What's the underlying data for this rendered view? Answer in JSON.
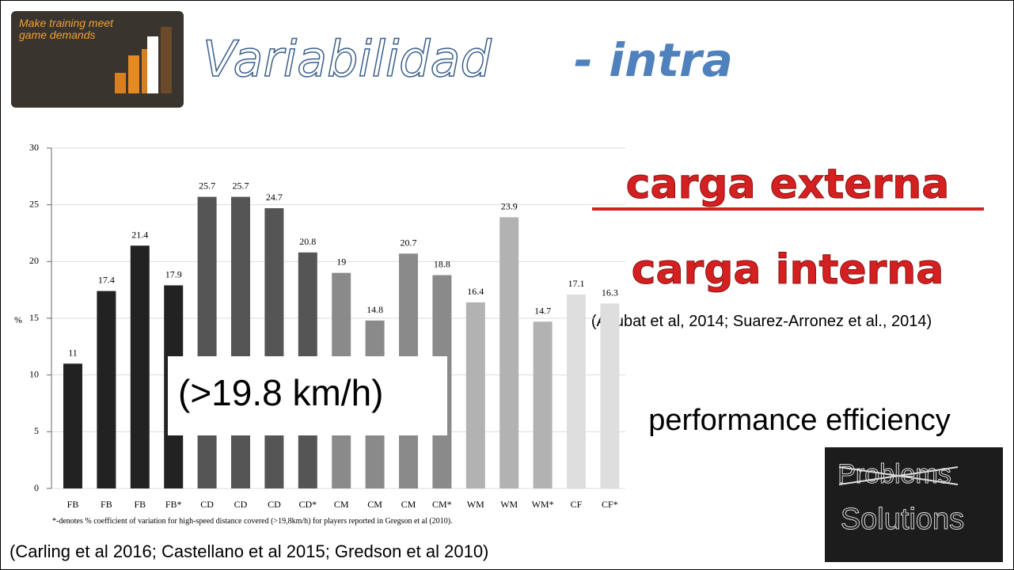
{
  "slide": {
    "logo_text": "Make training meet game demands",
    "title_main": "Variabilidad",
    "title_suffix": "- intra",
    "external_load": "carga externa",
    "internal_load": "carga interna",
    "load_refs": "(Akubat et al, 2014; Suarez-Arronez et al., 2014)",
    "performance": "performance efficiency",
    "chart_refs": "(Carling et al 2016; Castellano et al 2015; Gredson et al 2010)",
    "image_crossed": "Problems",
    "image_word": "Solutions",
    "speed_box": "(>19.8 km/h)"
  },
  "chart_data": {
    "type": "bar",
    "y_label": "%",
    "footnote": "*-denotes % coefficient of variation for high-speed distance covered (>19,8km/h) for players reported in Gregson et al (2010).",
    "categories": [
      "FB",
      "FB",
      "FB",
      "FB*",
      "CD",
      "CD",
      "CD",
      "CD*",
      "CM",
      "CM",
      "CM",
      "CM*",
      "WM",
      "WM",
      "WM*",
      "CF",
      "CF*"
    ],
    "values": [
      11,
      17.4,
      21.4,
      17.9,
      25.7,
      25.7,
      24.7,
      20.8,
      19,
      14.8,
      20.7,
      18.8,
      16.4,
      23.9,
      14.7,
      17.1,
      16.3
    ],
    "colors": [
      "#222222",
      "#222222",
      "#222222",
      "#222222",
      "#555555",
      "#555555",
      "#555555",
      "#555555",
      "#8a8a8a",
      "#8a8a8a",
      "#8a8a8a",
      "#8a8a8a",
      "#b2b2b2",
      "#b2b2b2",
      "#b2b2b2",
      "#dedede",
      "#dedede"
    ],
    "ylim": [
      0,
      30
    ],
    "yticks": [
      0,
      5,
      10,
      15,
      20,
      25,
      30
    ],
    "grid": true
  }
}
